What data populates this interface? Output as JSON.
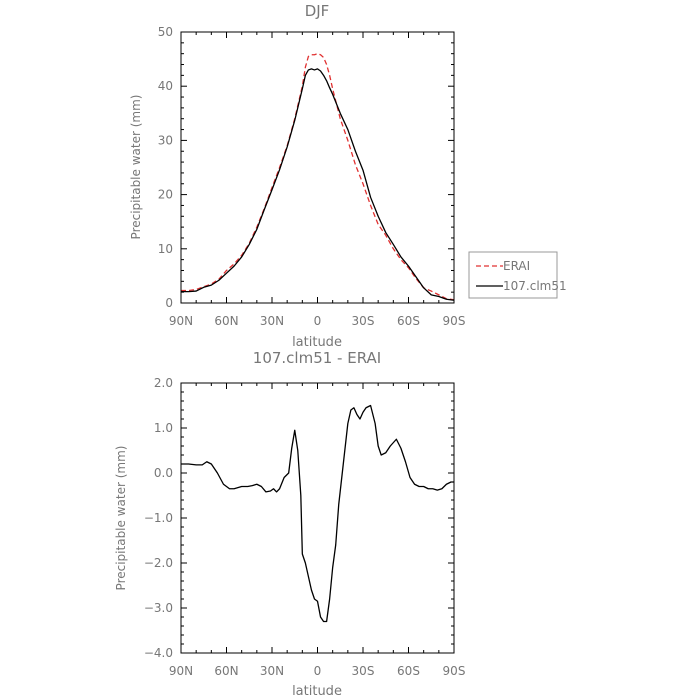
{
  "chart_data": [
    {
      "type": "line",
      "title": "DJF",
      "xlabel": "latitude",
      "ylabel": "Precipitable water (mm)",
      "xlim": [
        90,
        -90
      ],
      "ylim": [
        0,
        50
      ],
      "x_ticks": [
        90,
        60,
        30,
        0,
        -30,
        -60,
        -90
      ],
      "x_tick_labels": [
        "90N",
        "60N",
        "30N",
        "0",
        "30S",
        "60S",
        "90S"
      ],
      "y_ticks": [
        0,
        10,
        20,
        30,
        40,
        50
      ],
      "y_tick_labels": [
        "0",
        "10",
        "20",
        "30",
        "40",
        "50"
      ],
      "grid": false,
      "legend_position": "right",
      "series": [
        {
          "name": "ERAI",
          "color": "#e03030",
          "dash": "dashed",
          "x": [
            90,
            85,
            80,
            75,
            70,
            65,
            60,
            55,
            50,
            45,
            40,
            35,
            30,
            25,
            20,
            15,
            10,
            8,
            6,
            4,
            2,
            0,
            -2,
            -4,
            -6,
            -8,
            -10,
            -15,
            -20,
            -25,
            -30,
            -35,
            -40,
            -45,
            -50,
            -55,
            -60,
            -65,
            -70,
            -75,
            -80,
            -85,
            -90
          ],
          "values": [
            2.3,
            2.3,
            2.5,
            3.0,
            3.5,
            4.4,
            6.0,
            7.2,
            8.8,
            11.0,
            14.0,
            17.5,
            21.3,
            25.0,
            29.0,
            34.0,
            40.0,
            43.5,
            45.5,
            45.8,
            45.8,
            46.0,
            45.8,
            45.3,
            44.0,
            42.0,
            39.5,
            34.0,
            30.0,
            25.5,
            22.0,
            18.0,
            14.5,
            12.5,
            10.0,
            8.0,
            6.5,
            4.5,
            2.8,
            2.2,
            1.5,
            0.8,
            0.6
          ]
        },
        {
          "name": "107.clm51",
          "color": "#000000",
          "dash": "solid",
          "x": [
            90,
            85,
            80,
            75,
            70,
            65,
            60,
            55,
            50,
            45,
            40,
            35,
            30,
            25,
            20,
            15,
            10,
            8,
            6,
            4,
            2,
            0,
            -2,
            -4,
            -6,
            -8,
            -10,
            -15,
            -20,
            -25,
            -30,
            -35,
            -40,
            -45,
            -50,
            -55,
            -60,
            -65,
            -70,
            -75,
            -80,
            -85,
            -90
          ],
          "values": [
            2.1,
            2.1,
            2.2,
            2.9,
            3.3,
            4.2,
            5.5,
            6.8,
            8.5,
            10.8,
            13.6,
            17.3,
            20.9,
            24.6,
            28.8,
            33.7,
            39.5,
            42.0,
            43.0,
            43.2,
            43.0,
            43.2,
            42.8,
            42.0,
            41.0,
            39.7,
            38.5,
            35.0,
            32.0,
            28.0,
            24.5,
            19.5,
            16.0,
            13.0,
            10.8,
            8.5,
            6.8,
            4.8,
            2.8,
            1.5,
            1.2,
            0.7,
            0.5
          ]
        }
      ]
    },
    {
      "type": "line",
      "title": "107.clm51 - ERAI",
      "xlabel": "latitude",
      "ylabel": "Precipitable water (mm)",
      "xlim": [
        90,
        -90
      ],
      "ylim": [
        -4,
        2
      ],
      "x_ticks": [
        90,
        60,
        30,
        0,
        -30,
        -60,
        -90
      ],
      "x_tick_labels": [
        "90N",
        "60N",
        "30N",
        "0",
        "30S",
        "60S",
        "90S"
      ],
      "y_ticks": [
        2,
        1,
        0,
        -1,
        -2,
        -3,
        -4
      ],
      "y_tick_labels": [
        "2.0",
        "1.0",
        "0.0",
        "−1.0",
        "−2.0",
        "−3.0",
        "−4.0"
      ],
      "grid": false,
      "series": [
        {
          "color": "#000000",
          "dash": "solid",
          "x": [
            90,
            85,
            80,
            76,
            73,
            70,
            66,
            62,
            58,
            55,
            50,
            46,
            43,
            40,
            37,
            34,
            31,
            29,
            27,
            25,
            22,
            19,
            17,
            15,
            13,
            11,
            10,
            8,
            6,
            4,
            2,
            0,
            -2,
            -4,
            -6,
            -8,
            -10,
            -12,
            -14,
            -17,
            -20,
            -22,
            -24,
            -26,
            -28,
            -30,
            -32,
            -35,
            -38,
            -40,
            -42,
            -45,
            -48,
            -52,
            -55,
            -58,
            -61,
            -64,
            -67,
            -70,
            -73,
            -76,
            -79,
            -82,
            -85,
            -88,
            -90
          ],
          "values": [
            0.2,
            0.2,
            0.18,
            0.18,
            0.25,
            0.2,
            0.0,
            -0.25,
            -0.35,
            -0.35,
            -0.3,
            -0.3,
            -0.28,
            -0.25,
            -0.3,
            -0.42,
            -0.4,
            -0.35,
            -0.42,
            -0.35,
            -0.1,
            0.0,
            0.55,
            0.95,
            0.5,
            -0.5,
            -1.8,
            -2.0,
            -2.3,
            -2.6,
            -2.8,
            -2.85,
            -3.2,
            -3.3,
            -3.3,
            -2.8,
            -2.1,
            -1.6,
            -0.7,
            0.2,
            1.1,
            1.4,
            1.45,
            1.3,
            1.2,
            1.35,
            1.45,
            1.5,
            1.1,
            0.6,
            0.4,
            0.45,
            0.6,
            0.75,
            0.55,
            0.25,
            -0.1,
            -0.25,
            -0.3,
            -0.3,
            -0.35,
            -0.35,
            -0.38,
            -0.35,
            -0.25,
            -0.2,
            -0.2
          ]
        }
      ]
    }
  ]
}
